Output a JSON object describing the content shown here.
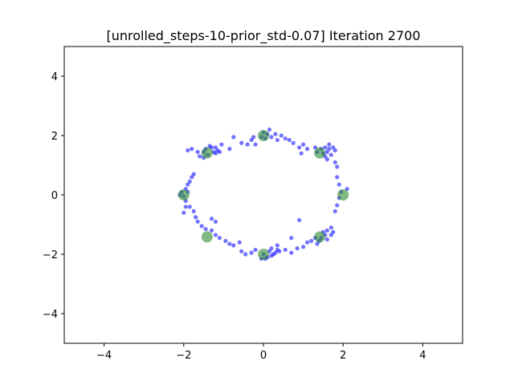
{
  "chart_data": {
    "type": "scatter",
    "title": "[unrolled_steps-10-prior_std-0.07] Iteration 2700",
    "xlabel": "",
    "ylabel": "",
    "xlim": [
      -5,
      5
    ],
    "ylim": [
      -5,
      5
    ],
    "xticks": [
      -4,
      -2,
      0,
      2,
      4
    ],
    "yticks": [
      -4,
      -2,
      0,
      2,
      4
    ],
    "grid": false,
    "colors": {
      "generated": "#0000ff",
      "real": "#2e8b2e"
    },
    "series": [
      {
        "points": [
          [
            -1.45,
            1.55
          ],
          [
            -1.4,
            1.35
          ],
          [
            -1.3,
            1.6
          ],
          [
            -1.25,
            1.45
          ],
          [
            -1.2,
            1.4
          ],
          [
            -1.15,
            1.5
          ],
          [
            -1.1,
            1.45
          ],
          [
            -1.35,
            1.65
          ],
          [
            -1.5,
            1.25
          ],
          [
            -1.65,
            1.45
          ],
          [
            -1.2,
            1.6
          ],
          [
            -1.05,
            1.7
          ],
          [
            -0.85,
            1.55
          ],
          [
            -0.75,
            1.95
          ],
          [
            -0.55,
            1.75
          ],
          [
            -0.4,
            1.7
          ],
          [
            -0.3,
            1.85
          ],
          [
            -0.2,
            1.7
          ],
          [
            -0.25,
            1.95
          ],
          [
            -0.05,
            1.95
          ],
          [
            0.0,
            2.1
          ],
          [
            0.05,
            1.9
          ],
          [
            0.1,
            2.05
          ],
          [
            0.15,
            2.2
          ],
          [
            0.2,
            1.95
          ],
          [
            0.3,
            2.05
          ],
          [
            0.35,
            1.85
          ],
          [
            0.45,
            2.0
          ],
          [
            0.55,
            1.9
          ],
          [
            0.65,
            1.85
          ],
          [
            0.75,
            1.75
          ],
          [
            0.9,
            1.6
          ],
          [
            1.0,
            1.7
          ],
          [
            1.1,
            1.55
          ],
          [
            1.3,
            1.6
          ],
          [
            1.35,
            1.45
          ],
          [
            1.45,
            1.55
          ],
          [
            1.5,
            1.4
          ],
          [
            1.55,
            1.6
          ],
          [
            1.6,
            1.45
          ],
          [
            1.65,
            1.55
          ],
          [
            1.7,
            1.35
          ],
          [
            1.75,
            1.6
          ],
          [
            1.55,
            1.3
          ],
          [
            1.65,
            1.7
          ],
          [
            1.8,
            1.5
          ],
          [
            1.6,
            1.2
          ],
          [
            1.8,
            1.1
          ],
          [
            1.85,
            0.95
          ],
          [
            1.85,
            0.6
          ],
          [
            1.9,
            0.35
          ],
          [
            1.95,
            0.1
          ],
          [
            1.9,
            -0.1
          ],
          [
            1.85,
            -0.35
          ],
          [
            1.8,
            -0.55
          ],
          [
            1.7,
            -1.1
          ],
          [
            1.6,
            -1.2
          ],
          [
            1.55,
            -1.35
          ],
          [
            1.5,
            -1.25
          ],
          [
            1.45,
            -1.45
          ],
          [
            1.4,
            -1.55
          ],
          [
            1.6,
            -1.5
          ],
          [
            1.7,
            -1.35
          ],
          [
            1.3,
            -1.45
          ],
          [
            1.35,
            -1.65
          ],
          [
            1.2,
            -1.55
          ],
          [
            1.1,
            -1.6
          ],
          [
            1.0,
            -1.75
          ],
          [
            0.85,
            -1.8
          ],
          [
            0.7,
            -1.95
          ],
          [
            0.55,
            -1.85
          ],
          [
            0.4,
            -1.9
          ],
          [
            0.3,
            -1.95
          ],
          [
            0.2,
            -2.05
          ],
          [
            0.15,
            -1.9
          ],
          [
            0.1,
            -2.1
          ],
          [
            0.05,
            -2.15
          ],
          [
            0.25,
            -2.0
          ],
          [
            0.35,
            -1.85
          ],
          [
            0.0,
            -2.0
          ],
          [
            -0.05,
            -2.15
          ],
          [
            0.2,
            -1.8
          ],
          [
            -0.2,
            -1.85
          ],
          [
            -0.3,
            -1.95
          ],
          [
            -0.45,
            -2.0
          ],
          [
            -0.55,
            -1.9
          ],
          [
            -0.75,
            -1.7
          ],
          [
            -0.85,
            -1.65
          ],
          [
            -0.95,
            -1.55
          ],
          [
            -1.1,
            -1.45
          ],
          [
            -1.2,
            -1.35
          ],
          [
            -1.3,
            -1.2
          ],
          [
            -1.45,
            -1.15
          ],
          [
            -1.55,
            -1.05
          ],
          [
            -1.65,
            -0.9
          ],
          [
            -1.7,
            -0.75
          ],
          [
            -1.75,
            -0.55
          ],
          [
            -1.85,
            -0.4
          ],
          [
            -1.95,
            -0.2
          ],
          [
            -2.0,
            -0.05
          ],
          [
            -2.05,
            0.1
          ],
          [
            -1.95,
            0.2
          ],
          [
            -1.9,
            0.35
          ],
          [
            -1.85,
            0.45
          ],
          [
            -1.8,
            0.6
          ],
          [
            -1.75,
            0.7
          ],
          [
            -1.9,
            0.1
          ],
          [
            -2.1,
            0.0
          ],
          [
            -1.95,
            -0.4
          ],
          [
            -2.0,
            -0.6
          ],
          [
            -1.9,
            1.5
          ],
          [
            -1.8,
            1.55
          ],
          [
            -1.6,
            1.3
          ],
          [
            -1.5,
            1.45
          ],
          [
            0.9,
            -0.85
          ],
          [
            0.7,
            -1.45
          ],
          [
            0.35,
            -1.7
          ],
          [
            -0.6,
            -1.6
          ],
          [
            -1.2,
            -0.9
          ],
          [
            -1.3,
            -0.8
          ],
          [
            0.95,
            1.4
          ],
          [
            2.1,
            0.2
          ],
          [
            1.75,
            -1.25
          ]
        ]
      }
    ],
    "real_points": [
      [
        -1.414,
        1.414
      ],
      [
        0.0,
        2.0
      ],
      [
        1.414,
        1.414
      ],
      [
        -2.0,
        0.0
      ],
      [
        2.0,
        0.0
      ],
      [
        -1.414,
        -1.414
      ],
      [
        0.0,
        -2.0
      ],
      [
        1.414,
        -1.414
      ]
    ]
  }
}
